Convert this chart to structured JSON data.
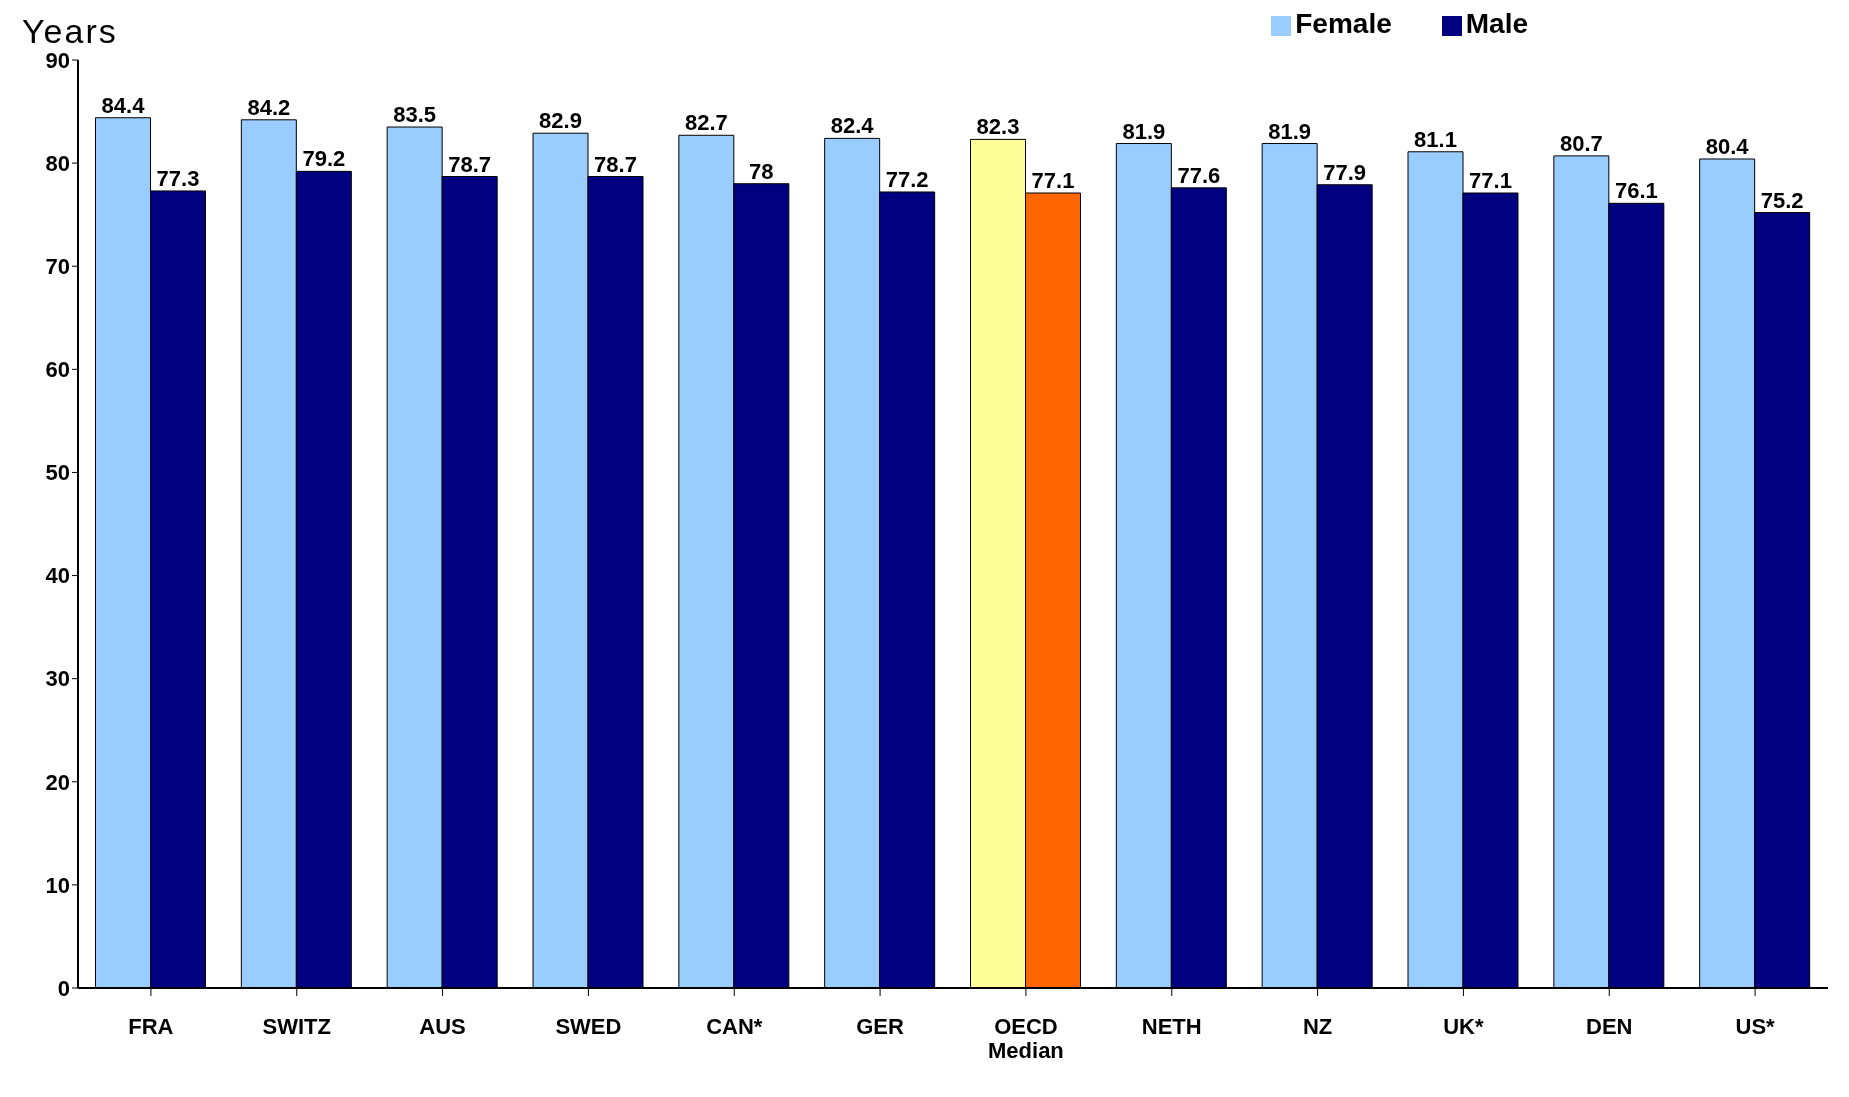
{
  "chart_data": {
    "type": "bar",
    "ylabel": "Years",
    "categories": [
      "FRA",
      "SWITZ",
      "AUS",
      "SWED",
      "CAN*",
      "GER",
      "OECD Median",
      "NETH",
      "NZ",
      "UK*",
      "DEN",
      "US*"
    ],
    "series": [
      {
        "name": "Female",
        "color": "#99ccff",
        "colors": [
          "#99ccff",
          "#99ccff",
          "#99ccff",
          "#99ccff",
          "#99ccff",
          "#99ccff",
          "#ffff99",
          "#99ccff",
          "#99ccff",
          "#99ccff",
          "#99ccff",
          "#99ccff"
        ],
        "values": [
          84.4,
          84.2,
          83.5,
          82.9,
          82.7,
          82.4,
          82.3,
          81.9,
          81.9,
          81.1,
          80.7,
          80.4
        ]
      },
      {
        "name": "Male",
        "color": "#000080",
        "colors": [
          "#000080",
          "#000080",
          "#000080",
          "#000080",
          "#000080",
          "#000080",
          "#ff6600",
          "#000080",
          "#000080",
          "#000080",
          "#000080",
          "#000080"
        ],
        "values": [
          77.3,
          79.2,
          78.7,
          78.7,
          78,
          77.2,
          77.1,
          77.6,
          77.9,
          77.1,
          76.1,
          75.2
        ]
      }
    ],
    "ylim": [
      0,
      90
    ],
    "yticks": [
      0,
      10,
      20,
      30,
      40,
      50,
      60,
      70,
      80,
      90
    ],
    "data_labels": true,
    "legend": "top right",
    "grid": false
  }
}
